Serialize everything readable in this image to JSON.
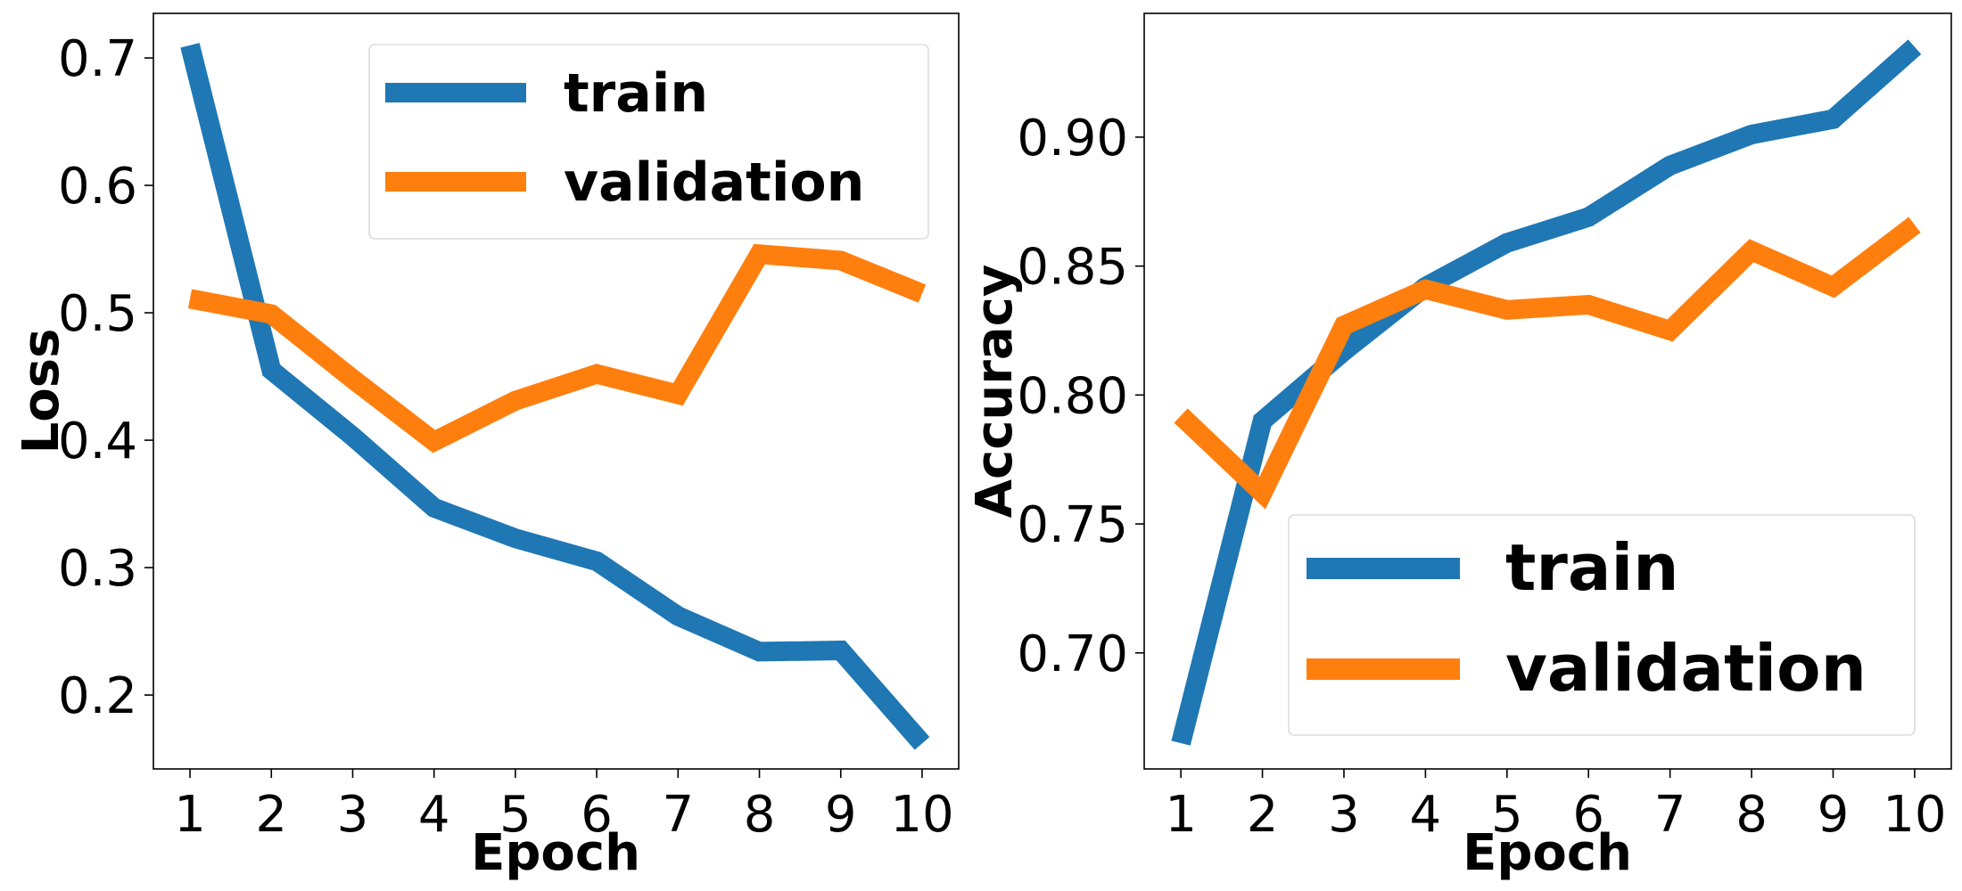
{
  "colors": {
    "train": "#1f77b4",
    "validation": "#ff7f0e"
  },
  "chart_data": [
    {
      "type": "line",
      "title": "",
      "xlabel": "Epoch",
      "ylabel": "Loss",
      "x": [
        1,
        2,
        3,
        4,
        5,
        6,
        7,
        8,
        9,
        10
      ],
      "xticks": [
        "1",
        "2",
        "3",
        "4",
        "5",
        "6",
        "7",
        "8",
        "9",
        "10"
      ],
      "yticks": [
        0.2,
        0.3,
        0.4,
        0.5,
        0.6,
        0.7
      ],
      "ytick_labels": [
        "0.2",
        "0.3",
        "0.4",
        "0.5",
        "0.6",
        "0.7"
      ],
      "xlim": [
        0.55,
        10.45
      ],
      "ylim": [
        0.142,
        0.735
      ],
      "legend_position": "upper-right",
      "series": [
        {
          "name": "train",
          "color_key": "train",
          "values": [
            0.71,
            0.455,
            0.403,
            0.347,
            0.323,
            0.305,
            0.262,
            0.234,
            0.235,
            0.162
          ]
        },
        {
          "name": "validation",
          "color_key": "validation",
          "values": [
            0.511,
            0.499,
            0.448,
            0.399,
            0.431,
            0.452,
            0.436,
            0.546,
            0.541,
            0.515
          ]
        }
      ]
    },
    {
      "type": "line",
      "title": "",
      "xlabel": "Epoch",
      "ylabel": "Accuracy",
      "x": [
        1,
        2,
        3,
        4,
        5,
        6,
        7,
        8,
        9,
        10
      ],
      "xticks": [
        "1",
        "2",
        "3",
        "4",
        "5",
        "6",
        "7",
        "8",
        "9",
        "10"
      ],
      "yticks": [
        0.7,
        0.75,
        0.8,
        0.85,
        0.9
      ],
      "ytick_labels": [
        "0.70",
        "0.75",
        "0.80",
        "0.85",
        "0.90"
      ],
      "xlim": [
        0.55,
        10.45
      ],
      "ylim": [
        0.655,
        0.948
      ],
      "legend_position": "lower-right",
      "series": [
        {
          "name": "train",
          "color_key": "train",
          "values": [
            0.665,
            0.79,
            0.817,
            0.842,
            0.859,
            0.869,
            0.889,
            0.901,
            0.907,
            0.935
          ]
        },
        {
          "name": "validation",
          "color_key": "validation",
          "values": [
            0.792,
            0.762,
            0.827,
            0.841,
            0.833,
            0.835,
            0.825,
            0.856,
            0.842,
            0.866
          ]
        }
      ]
    }
  ]
}
